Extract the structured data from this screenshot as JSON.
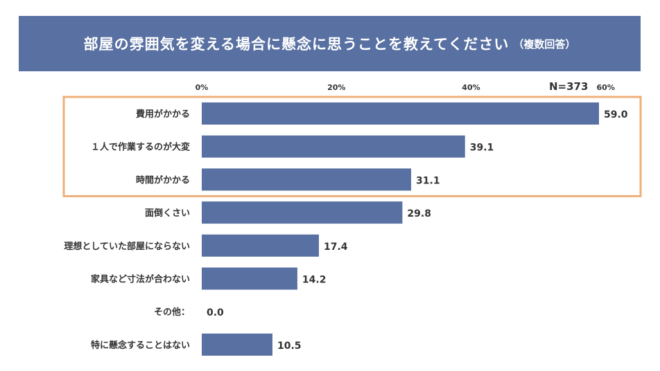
{
  "title": "部屋の雰囲気を変える場合に懸念に思うことを教えてください",
  "title_note": "（複数回答）",
  "sample_size": "N=373",
  "colors": {
    "bar": "#5870a2",
    "highlight": "#eeb07a",
    "band": "#5870a2"
  },
  "chart_data": {
    "type": "bar",
    "orientation": "horizontal",
    "title": "部屋の雰囲気を変える場合に懸念に思うことを教えてください（複数回答）",
    "xlim": [
      0,
      60
    ],
    "ticks": [
      0,
      20,
      40,
      60
    ],
    "tick_labels": [
      "0%",
      "20%",
      "40%",
      "60%"
    ],
    "categories": [
      "費用がかかる",
      "１人で作業するのが大変",
      "時間がかかる",
      "面倒くさい",
      "理想としていた部屋にならない",
      "家具など寸法が合わない",
      "その他：",
      "特に懸念することはない"
    ],
    "values": [
      59.0,
      39.1,
      31.1,
      29.8,
      17.4,
      14.2,
      0.0,
      10.5
    ],
    "value_labels": [
      "59.0",
      "39.1",
      "31.1",
      "29.8",
      "17.4",
      "14.2",
      "0.0",
      "10.5"
    ],
    "highlighted": [
      0,
      1,
      2
    ]
  }
}
